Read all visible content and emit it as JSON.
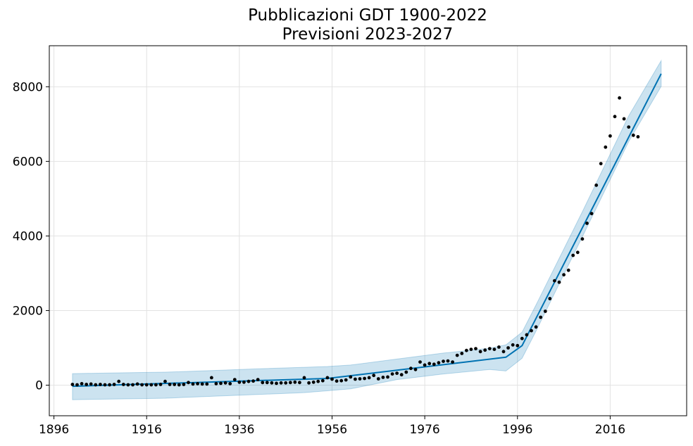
{
  "chart_data": {
    "type": "line",
    "title": [
      "Pubblicazioni GDT 1900-2022",
      "Previsioni 2023-2027"
    ],
    "xlabel": "",
    "ylabel": "",
    "xlim": [
      1895,
      2032.5
    ],
    "ylim": [
      -820,
      9100
    ],
    "x_ticks": [
      1896,
      1916,
      1936,
      1956,
      1976,
      1996,
      2016
    ],
    "x_tick_labels": [
      "1896",
      "1916",
      "1936",
      "1956",
      "1976",
      "1996",
      "2016"
    ],
    "y_ticks": [
      0,
      2000,
      4000,
      6000,
      8000
    ],
    "y_tick_labels": [
      "0",
      "2000",
      "4000",
      "6000",
      "8000"
    ],
    "grid": true,
    "colors": {
      "trend": "#0072b2",
      "band": "#0072b2",
      "points": "#000000",
      "grid": "#e2e2e2"
    },
    "observed": {
      "x": [
        1900,
        1901,
        1902,
        1903,
        1904,
        1905,
        1906,
        1907,
        1908,
        1909,
        1910,
        1911,
        1912,
        1913,
        1914,
        1915,
        1916,
        1917,
        1918,
        1919,
        1920,
        1921,
        1922,
        1923,
        1924,
        1925,
        1926,
        1927,
        1928,
        1929,
        1930,
        1931,
        1932,
        1933,
        1934,
        1935,
        1936,
        1937,
        1938,
        1939,
        1940,
        1941,
        1942,
        1943,
        1944,
        1945,
        1946,
        1947,
        1948,
        1949,
        1950,
        1951,
        1952,
        1953,
        1954,
        1955,
        1956,
        1957,
        1958,
        1959,
        1960,
        1961,
        1962,
        1963,
        1964,
        1965,
        1966,
        1967,
        1968,
        1969,
        1970,
        1971,
        1972,
        1973,
        1974,
        1975,
        1976,
        1977,
        1978,
        1979,
        1980,
        1981,
        1982,
        1983,
        1984,
        1985,
        1986,
        1987,
        1988,
        1989,
        1990,
        1991,
        1992,
        1993,
        1994,
        1995,
        1996,
        1997,
        1998,
        1999,
        2000,
        2001,
        2002,
        2003,
        2004,
        2005,
        2006,
        2007,
        2008,
        2009,
        2010,
        2011,
        2012,
        2013,
        2014,
        2015,
        2016,
        2017,
        2018,
        2019,
        2020,
        2021,
        2022
      ],
      "y": [
        20,
        10,
        40,
        20,
        30,
        10,
        20,
        10,
        10,
        20,
        100,
        20,
        10,
        10,
        30,
        10,
        10,
        10,
        10,
        20,
        100,
        20,
        20,
        10,
        20,
        70,
        30,
        40,
        30,
        30,
        200,
        40,
        50,
        60,
        40,
        150,
        80,
        80,
        100,
        110,
        150,
        70,
        70,
        60,
        50,
        60,
        60,
        70,
        80,
        70,
        200,
        60,
        80,
        100,
        120,
        200,
        160,
        110,
        120,
        140,
        220,
        160,
        170,
        180,
        200,
        260,
        170,
        210,
        220,
        300,
        320,
        280,
        350,
        450,
        420,
        620,
        540,
        580,
        560,
        600,
        640,
        650,
        620,
        800,
        850,
        930,
        960,
        980,
        900,
        940,
        980,
        960,
        1020,
        900,
        1000,
        1080,
        1060,
        1250,
        1350,
        1460,
        1560,
        1820,
        1980,
        2320,
        2800,
        2760,
        2960,
        3080,
        3480,
        3560,
        3920,
        4340,
        4600,
        5360,
        5940,
        6380,
        6680,
        7200,
        7700,
        7140,
        6920,
        6700,
        6660
      ]
    },
    "trend": {
      "x": [
        1900,
        1955,
        1993.5,
        1997,
        2027
      ],
      "y": [
        -30,
        180,
        750,
        1060,
        8350
      ]
    },
    "band": {
      "x": [
        1900,
        1910,
        1920,
        1930,
        1940,
        1950,
        1955,
        1960,
        1970,
        1980,
        1990,
        1993.5,
        1997,
        2000,
        2010,
        2020,
        2027
      ],
      "upper": [
        310,
        330,
        350,
        390,
        440,
        480,
        500,
        540,
        700,
        860,
        990,
        1080,
        1420,
        2150,
        4650,
        7220,
        8700
      ],
      "lower": [
        -390,
        -370,
        -350,
        -300,
        -250,
        -200,
        -150,
        -100,
        150,
        300,
        420,
        380,
        720,
        1450,
        3980,
        6530,
        8010
      ]
    }
  }
}
